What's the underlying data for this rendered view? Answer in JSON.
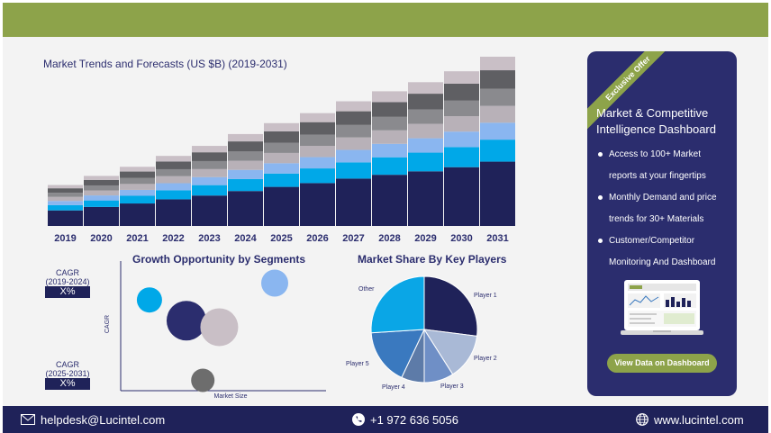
{
  "footer": {
    "email": "helpdesk@Lucintel.com",
    "phone": "+1 972 636 5056",
    "website": "www.lucintel.com"
  },
  "offer_card": {
    "ribbon": "Exclusive Offer",
    "title": "Market & Competitive Intelligence Dashboard",
    "bullets": [
      "Access to 100+ Market reports at your fingertips",
      "Monthly Demand and price trends for 30+ Materials",
      "Customer/Competitor Monitoring And Dashboard"
    ],
    "button": "View Data on Dashboard"
  },
  "cagr": {
    "period1_label": "CAGR (2019-2024)",
    "period1_value": "X%",
    "period2_label": "CAGR (2025-2031)",
    "period2_value": "X%"
  },
  "colors": {
    "brand_green": "#8da34a",
    "navy": "#1f2259",
    "segments": [
      "#1f2259",
      "#00a8e8",
      "#8ab6f0",
      "#b8b1b8",
      "#8a8a8e",
      "#5f5f63",
      "#c9bfc6"
    ]
  },
  "chart_data": [
    {
      "type": "bar",
      "title": "Market Trends and Forecasts (US $B) (2019-2031)",
      "stacked": true,
      "categories": [
        "2019",
        "2020",
        "2021",
        "2022",
        "2023",
        "2024",
        "2025",
        "2026",
        "2027",
        "2028",
        "2029",
        "2030",
        "2031"
      ],
      "totals": [
        45,
        55,
        65,
        77,
        88,
        101,
        113,
        124,
        137,
        148,
        158,
        170,
        186
      ],
      "segment_shares": [
        0.38,
        0.13,
        0.1,
        0.1,
        0.1,
        0.11,
        0.08
      ]
    },
    {
      "type": "scatter",
      "title": "Growth Opportunity by Segments",
      "xlabel": "Market Size",
      "ylabel": "CAGR",
      "points": [
        {
          "x": 0.14,
          "y": 0.7,
          "size": 14,
          "color": "#00a8e8"
        },
        {
          "x": 0.32,
          "y": 0.54,
          "size": 22,
          "color": "#2b2d6e"
        },
        {
          "x": 0.48,
          "y": 0.49,
          "size": 21,
          "color": "#c9bfc6"
        },
        {
          "x": 0.4,
          "y": 0.08,
          "size": 13,
          "color": "#6d6d6d"
        },
        {
          "x": 0.75,
          "y": 0.83,
          "size": 15,
          "color": "#8ab6f0"
        }
      ]
    },
    {
      "type": "pie",
      "title": "Market Share By Key Players",
      "slices": [
        {
          "label": "Player 1",
          "value": 27,
          "color": "#1f2259"
        },
        {
          "label": "Player 2",
          "value": 14,
          "color": "#a9b9d6"
        },
        {
          "label": "Player 3",
          "value": 9,
          "color": "#6f8fc6"
        },
        {
          "label": "Player 4",
          "value": 7,
          "color": "#5d7ba8"
        },
        {
          "label": "Player 5",
          "value": 17,
          "color": "#3a79bf"
        },
        {
          "label": "Other",
          "value": 26,
          "color": "#0aa6e6"
        }
      ]
    }
  ]
}
